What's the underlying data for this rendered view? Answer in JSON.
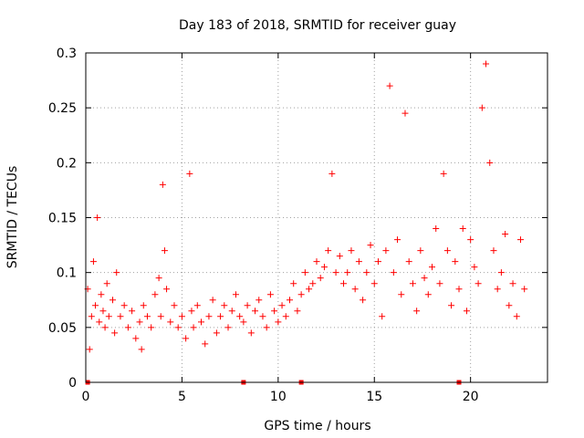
{
  "chart_data": {
    "type": "scatter",
    "title": "Day 183 of 2018, SRMTID for receiver guay",
    "xlabel": "GPS time / hours",
    "ylabel": "SRMTID / TECUs",
    "xlim": [
      0,
      24
    ],
    "ylim": [
      0,
      0.3
    ],
    "x_ticks": [
      0,
      5,
      10,
      15,
      20
    ],
    "x_tick_labels": [
      "0",
      "5",
      "10",
      "15",
      "20"
    ],
    "y_ticks": [
      0,
      0.05,
      0.1,
      0.15,
      0.2,
      0.25,
      0.3
    ],
    "y_tick_labels": [
      "0",
      "0.05",
      "0.1",
      "0.15",
      "0.2",
      "0.25",
      "0.3"
    ],
    "grid": true,
    "marker": "plus",
    "colors": {
      "series": "#ff0000"
    },
    "series": [
      {
        "name": "SRMTID",
        "x": [
          0.1,
          0.2,
          0.3,
          0.4,
          0.5,
          0.6,
          0.7,
          0.8,
          0.9,
          1.0,
          1.1,
          1.2,
          1.4,
          1.5,
          1.6,
          1.8,
          2.0,
          2.2,
          2.4,
          2.6,
          2.8,
          2.9,
          3.0,
          3.2,
          3.4,
          3.6,
          3.8,
          3.9,
          4.0,
          4.1,
          4.2,
          4.4,
          4.6,
          4.8,
          5.0,
          5.2,
          5.4,
          5.5,
          5.6,
          5.8,
          6.0,
          6.2,
          6.4,
          6.6,
          6.8,
          7.0,
          7.2,
          7.4,
          7.6,
          7.8,
          8.0,
          8.2,
          8.4,
          8.6,
          8.8,
          9.0,
          9.2,
          9.4,
          9.6,
          9.8,
          10.0,
          10.2,
          10.4,
          10.6,
          10.8,
          11.0,
          11.2,
          11.4,
          11.6,
          11.8,
          12.0,
          12.2,
          12.4,
          12.6,
          12.8,
          13.0,
          13.2,
          13.4,
          13.6,
          13.8,
          14.0,
          14.2,
          14.4,
          14.6,
          14.8,
          15.0,
          15.2,
          15.4,
          15.6,
          15.8,
          16.0,
          16.2,
          16.4,
          16.6,
          16.8,
          17.0,
          17.2,
          17.4,
          17.6,
          17.8,
          18.0,
          18.2,
          18.4,
          18.6,
          18.8,
          19.0,
          19.2,
          19.4,
          19.6,
          19.8,
          20.0,
          20.2,
          20.4,
          20.6,
          20.8,
          21.0,
          21.2,
          21.4,
          21.6,
          21.8,
          22.0,
          22.2,
          22.4,
          22.6,
          22.8
        ],
        "y": [
          0.085,
          0.03,
          0.06,
          0.11,
          0.07,
          0.15,
          0.055,
          0.08,
          0.065,
          0.05,
          0.09,
          0.06,
          0.075,
          0.045,
          0.1,
          0.06,
          0.07,
          0.05,
          0.065,
          0.04,
          0.055,
          0.03,
          0.07,
          0.06,
          0.05,
          0.08,
          0.095,
          0.06,
          0.18,
          0.12,
          0.085,
          0.055,
          0.07,
          0.05,
          0.06,
          0.04,
          0.19,
          0.065,
          0.05,
          0.07,
          0.055,
          0.035,
          0.06,
          0.075,
          0.045,
          0.06,
          0.07,
          0.05,
          0.065,
          0.08,
          0.06,
          0.055,
          0.07,
          0.045,
          0.065,
          0.075,
          0.06,
          0.05,
          0.08,
          0.065,
          0.055,
          0.07,
          0.06,
          0.075,
          0.09,
          0.065,
          0.08,
          0.1,
          0.085,
          0.09,
          0.11,
          0.095,
          0.105,
          0.12,
          0.19,
          0.1,
          0.115,
          0.09,
          0.1,
          0.12,
          0.085,
          0.11,
          0.075,
          0.1,
          0.125,
          0.09,
          0.11,
          0.06,
          0.12,
          0.27,
          0.1,
          0.13,
          0.08,
          0.245,
          0.11,
          0.09,
          0.065,
          0.12,
          0.095,
          0.08,
          0.105,
          0.14,
          0.09,
          0.19,
          0.12,
          0.07,
          0.11,
          0.085,
          0.14,
          0.065,
          0.13,
          0.105,
          0.09,
          0.25,
          0.29,
          0.2,
          0.12,
          0.085,
          0.1,
          0.135,
          0.07,
          0.09,
          0.06,
          0.13,
          0.085
        ]
      }
    ],
    "zero_markers_x": [
      0.1,
      8.2,
      11.2,
      19.4
    ]
  }
}
